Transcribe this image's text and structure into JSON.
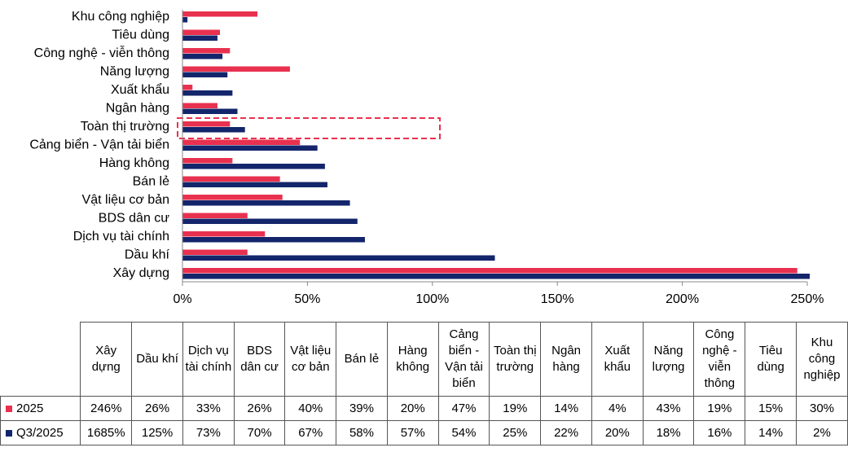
{
  "chart_data": {
    "type": "bar",
    "orientation": "horizontal",
    "categories": [
      "Xây dựng",
      "Dầu khí",
      "Dịch vụ tài chính",
      "BDS dân cư",
      "Vật liệu cơ bản",
      "Bán lẻ",
      "Hàng không",
      "Cảng biển - Vận tải biển",
      "Toàn thị trường",
      "Ngân hàng",
      "Xuất khẩu",
      "Năng lượng",
      "Công nghệ - viễn thông",
      "Tiêu dùng",
      "Khu công nghiệp"
    ],
    "series": [
      {
        "name": "2025",
        "color": "#e8314f",
        "values": [
          246,
          26,
          33,
          26,
          40,
          39,
          20,
          47,
          19,
          14,
          4,
          43,
          19,
          15,
          30
        ],
        "value_labels": [
          "246%",
          "26%",
          "33%",
          "26%",
          "40%",
          "39%",
          "20%",
          "47%",
          "19%",
          "14%",
          "4%",
          "43%",
          "19%",
          "15%",
          "30%"
        ]
      },
      {
        "name": "Q3/2025",
        "color": "#13256b",
        "values": [
          1685,
          125,
          73,
          70,
          67,
          58,
          57,
          54,
          25,
          22,
          20,
          18,
          16,
          14,
          2
        ],
        "value_labels": [
          "1685%",
          "125%",
          "73%",
          "70%",
          "67%",
          "58%",
          "57%",
          "54%",
          "25%",
          "22%",
          "20%",
          "18%",
          "16%",
          "14%",
          "2%"
        ]
      }
    ],
    "xlim": [
      0,
      250
    ],
    "xticks": [
      {
        "value": 0,
        "label": "0%"
      },
      {
        "value": 50,
        "label": "50%"
      },
      {
        "value": 100,
        "label": "100%"
      },
      {
        "value": 150,
        "label": "150%"
      },
      {
        "value": 200,
        "label": "200%"
      },
      {
        "value": 250,
        "label": "250%"
      }
    ]
  }
}
